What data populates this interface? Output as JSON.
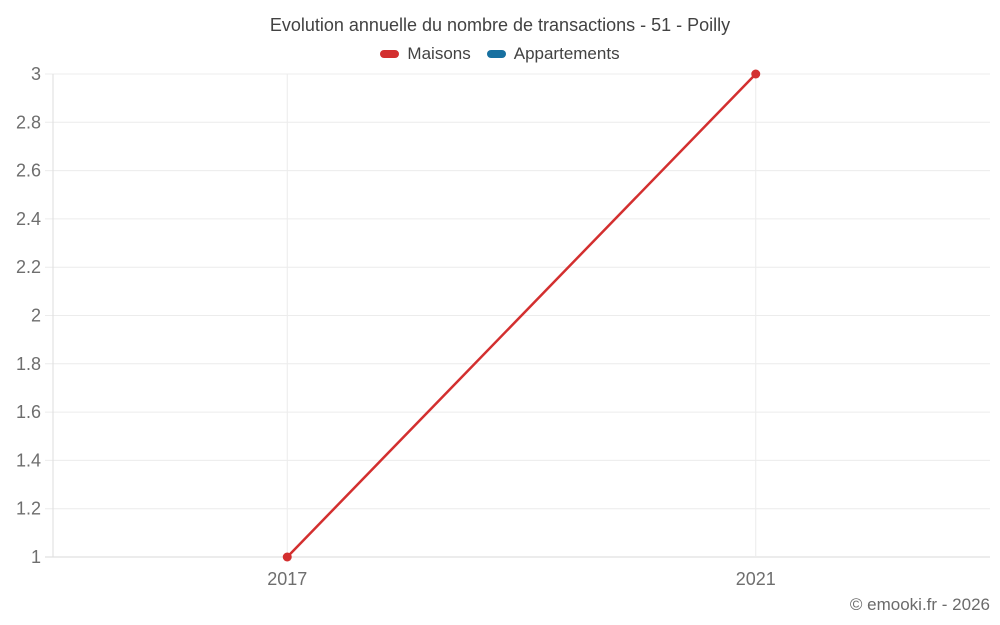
{
  "chart_data": {
    "type": "line",
    "title": "Evolution annuelle du nombre de transactions - 51 - Poilly",
    "x": [
      2017,
      2021
    ],
    "xlim": [
      2015,
      2023
    ],
    "ylim": [
      1,
      3
    ],
    "yticks": [
      1,
      1.2,
      1.4,
      1.6,
      1.8,
      2,
      2.2,
      2.4,
      2.6,
      2.8,
      3
    ],
    "grid": true,
    "legend_position": "top",
    "series": [
      {
        "name": "Maisons",
        "color": "#d32f2f",
        "values": [
          1,
          3
        ]
      },
      {
        "name": "Appartements",
        "color": "#1770a0",
        "values": []
      }
    ]
  },
  "footer": {
    "copyright": "© emooki.fr - 2026"
  },
  "palette": {
    "grid_line": "#ececec",
    "y_axis_line": "#dedede",
    "x_axis_line": "#d9d9d9",
    "tick_label": "#6e6e6e",
    "text": "#424242"
  }
}
